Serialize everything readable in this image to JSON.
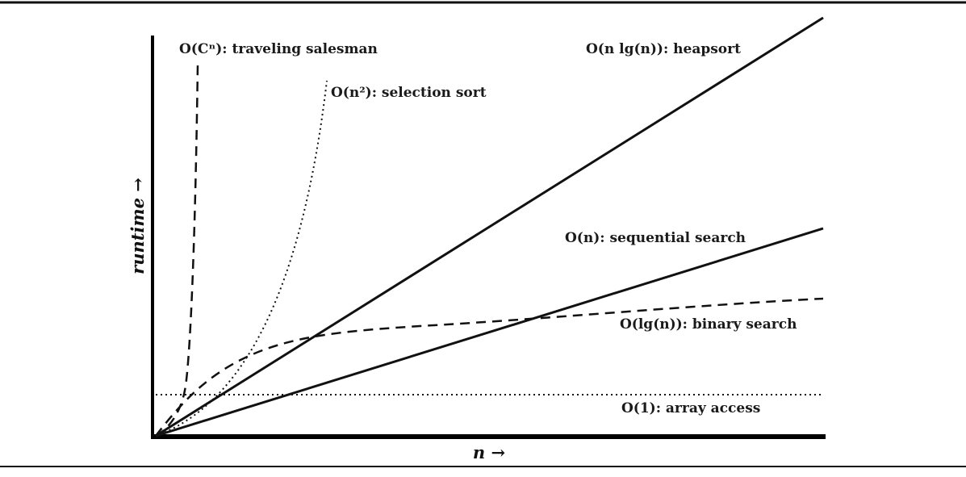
{
  "chart_data": {
    "type": "line",
    "xlabel": "n →",
    "ylabel": "runtime →",
    "axis_ticks": "none",
    "grid": false,
    "legend": "labels placed next to each curve",
    "series": [
      {
        "name": "O(Cⁿ): traveling salesman",
        "function": "exponential",
        "line_style": "dashed",
        "color": "#111111"
      },
      {
        "name": "O(n²): selection sort",
        "function": "quadratic",
        "line_style": "dotted",
        "color": "#111111"
      },
      {
        "name": "O(n lg(n)): heapsort",
        "function": "n log n",
        "line_style": "solid",
        "color": "#111111"
      },
      {
        "name": "O(n): sequential search",
        "function": "linear",
        "line_style": "solid",
        "color": "#111111"
      },
      {
        "name": "O(lg(n)): binary search",
        "function": "logarithmic",
        "line_style": "dashed",
        "color": "#111111"
      },
      {
        "name": "O(1): array access",
        "function": "constant",
        "line_style": "dotted",
        "color": "#111111"
      }
    ]
  }
}
